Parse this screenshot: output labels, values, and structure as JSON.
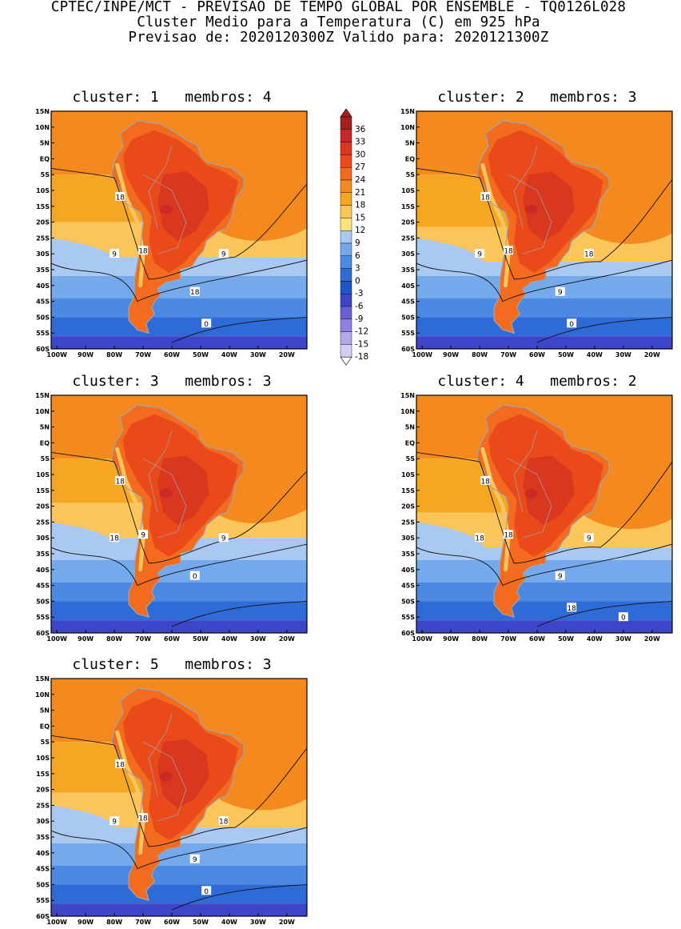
{
  "header": {
    "line1": "CPTEC/INPE/MCT - PREVISAO DE TEMPO GLOBAL POR ENSEMBLE - TQ0126L028",
    "line2": "Cluster Medio para a Temperatura (C) em 925 hPa",
    "line3": "Previsao de: 2020120300Z   Valido para: 2020121300Z"
  },
  "panels": [
    {
      "title": "cluster: 1   membros: 4",
      "contour_labels": [
        "18",
        "18",
        "9",
        "9",
        "18",
        "0"
      ]
    },
    {
      "title": "cluster: 2   membros: 3",
      "contour_labels": [
        "18",
        "18",
        "9",
        "18",
        "9",
        "0"
      ]
    },
    {
      "title": "cluster: 3   membros: 3",
      "contour_labels": [
        "18",
        "9",
        "18",
        "9",
        "0"
      ]
    },
    {
      "title": "cluster: 4   membros: 2",
      "contour_labels": [
        "18",
        "18",
        "18",
        "9",
        "9",
        "18",
        "0"
      ]
    },
    {
      "title": "cluster: 5   membros: 3",
      "contour_labels": [
        "18",
        "18",
        "9",
        "18",
        "9",
        "0"
      ]
    }
  ],
  "axes": {
    "lat_ticks": [
      "15N",
      "10N",
      "5N",
      "EQ",
      "5S",
      "10S",
      "15S",
      "20S",
      "25S",
      "30S",
      "35S",
      "40S",
      "45S",
      "50S",
      "55S",
      "60S"
    ],
    "lon_ticks": [
      "100W",
      "90W",
      "80W",
      "70W",
      "60W",
      "50W",
      "40W",
      "30W",
      "20W"
    ]
  },
  "legend": {
    "levels": [
      "36",
      "33",
      "30",
      "27",
      "24",
      "21",
      "18",
      "15",
      "12",
      "9",
      "6",
      "3",
      "0",
      "-3",
      "-6",
      "-9",
      "-12",
      "-15",
      "-18"
    ],
    "colors": [
      "#a51f1f",
      "#c62828",
      "#d9381e",
      "#ea4a1a",
      "#f26b1f",
      "#f48a1e",
      "#f5a623",
      "#fbc55a",
      "#fde27a",
      "#a9c8f2",
      "#74a9ec",
      "#4b89e3",
      "#2f6bd6",
      "#1f54c7",
      "#3d46c8",
      "#6a5fd2",
      "#8f82de",
      "#b3a9e8",
      "#d4cdf3"
    ]
  },
  "colors": {
    "ocean_south": "#2a60cf",
    "ocean_mid": "#5e93e6",
    "land_hot": "#e23f1c",
    "land_hot_core": "#c42a17",
    "warm_sea": "#f4951f",
    "contour": "#111111",
    "borders": "#9ea6b0"
  }
}
